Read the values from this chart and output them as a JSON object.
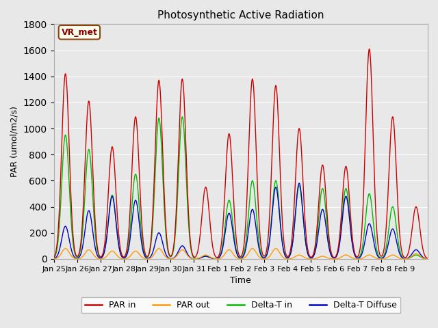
{
  "title": "Photosynthetic Active Radiation",
  "ylabel": "PAR (umol/m2/s)",
  "xlabel": "Time",
  "annotation": "VR_met",
  "ylim": [
    0,
    1800
  ],
  "plot_bg_color": "#e8e8e8",
  "tick_labels": [
    "Jan 25",
    "Jan 26",
    "Jan 27",
    "Jan 28",
    "Jan 29",
    "Jan 30",
    "Jan 31",
    "Feb 1",
    "Feb 2",
    "Feb 3",
    "Feb 4",
    "Feb 5",
    "Feb 6",
    "Feb 7",
    "Feb 8",
    "Feb 9"
  ],
  "legend": [
    {
      "label": "PAR in",
      "color": "#cc0000"
    },
    {
      "label": "PAR out",
      "color": "#ff9900"
    },
    {
      "label": "Delta-T in",
      "color": "#00cc00"
    },
    {
      "label": "Delta-T Diffuse",
      "color": "#0000cc"
    }
  ],
  "n_points_per_day": 96,
  "n_days": 16,
  "par_in_peaks": [
    1420,
    1210,
    860,
    1090,
    1370,
    1380,
    550,
    960,
    1380,
    1330,
    1000,
    720,
    710,
    1610,
    1090,
    400
  ],
  "par_out_peaks": [
    80,
    70,
    60,
    60,
    80,
    70,
    30,
    70,
    80,
    80,
    30,
    20,
    30,
    30,
    30,
    40
  ],
  "delta_t_peaks": [
    950,
    840,
    490,
    650,
    1080,
    1090,
    20,
    450,
    600,
    600,
    560,
    540,
    540,
    500,
    400,
    30
  ],
  "delta_d_peaks": [
    250,
    370,
    480,
    450,
    200,
    100,
    20,
    350,
    380,
    550,
    580,
    380,
    480,
    270,
    230,
    70
  ],
  "colors": {
    "PAR_in": "#cc0000",
    "PAR_out": "#ff9900",
    "Delta_T_in": "#00bb00",
    "Delta_T_Diffuse": "#0000cc"
  }
}
